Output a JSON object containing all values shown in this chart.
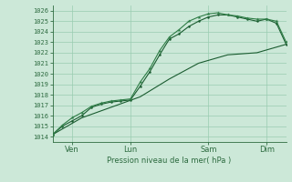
{
  "title": "",
  "xlabel": "Pression niveau de la mer( hPa )",
  "ylabel": "",
  "ylim": [
    1013.5,
    1026.5
  ],
  "xlim": [
    0,
    96
  ],
  "background_color": "#cce8d8",
  "grid_color": "#99ccb0",
  "line_color_dark": "#1a5c30",
  "line_color_mid": "#2e7d46",
  "tick_color": "#2d6b40",
  "xtick_positions": [
    8,
    32,
    64,
    88
  ],
  "xtick_labels": [
    "Ven",
    "Lun",
    "Sam",
    "Dim"
  ],
  "ytick_positions": [
    1014,
    1015,
    1016,
    1017,
    1018,
    1019,
    1020,
    1021,
    1022,
    1023,
    1024,
    1025,
    1026
  ],
  "line1_x": [
    0,
    4,
    8,
    12,
    16,
    20,
    24,
    28,
    32,
    36,
    40,
    44,
    48,
    52,
    56,
    60,
    64,
    68,
    72,
    76,
    80,
    84,
    88,
    92,
    96
  ],
  "line1_y": [
    1014.2,
    1015.0,
    1015.5,
    1016.0,
    1016.8,
    1017.1,
    1017.3,
    1017.4,
    1017.5,
    1018.8,
    1020.2,
    1021.8,
    1023.3,
    1023.8,
    1024.5,
    1025.0,
    1025.4,
    1025.6,
    1025.6,
    1025.4,
    1025.2,
    1025.0,
    1025.2,
    1024.8,
    1022.8
  ],
  "line2_x": [
    0,
    4,
    8,
    12,
    16,
    20,
    24,
    28,
    32,
    36,
    40,
    44,
    48,
    52,
    56,
    60,
    64,
    68,
    72,
    76,
    80,
    84,
    88,
    92,
    96
  ],
  "line2_y": [
    1014.2,
    1015.1,
    1015.8,
    1016.3,
    1016.9,
    1017.2,
    1017.4,
    1017.5,
    1017.6,
    1019.2,
    1020.5,
    1022.2,
    1023.5,
    1024.2,
    1025.0,
    1025.4,
    1025.7,
    1025.8,
    1025.6,
    1025.5,
    1025.3,
    1025.2,
    1025.2,
    1025.0,
    1023.0
  ],
  "line3_x": [
    0,
    12,
    24,
    36,
    48,
    60,
    72,
    84,
    96
  ],
  "line3_y": [
    1014.2,
    1015.8,
    1016.8,
    1017.8,
    1019.5,
    1021.0,
    1021.8,
    1022.0,
    1022.8
  ],
  "figsize": [
    3.2,
    2.0
  ],
  "dpi": 100
}
